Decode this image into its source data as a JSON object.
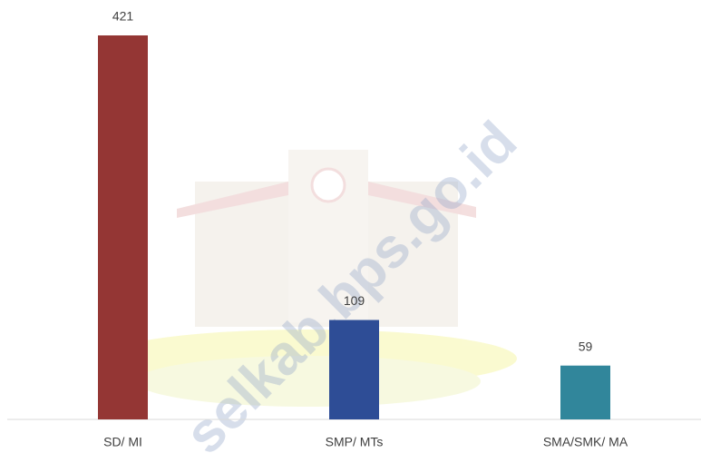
{
  "chart_data": {
    "type": "bar",
    "categories": [
      "SD/ MI",
      "SMP/ MTs",
      "SMA/SMK/ MA"
    ],
    "values": [
      421,
      109,
      59
    ],
    "colors": [
      "#943634",
      "#2e4d96",
      "#31869b"
    ],
    "ylim": [
      0,
      421
    ],
    "watermark": "selkab.bps.go.id"
  }
}
